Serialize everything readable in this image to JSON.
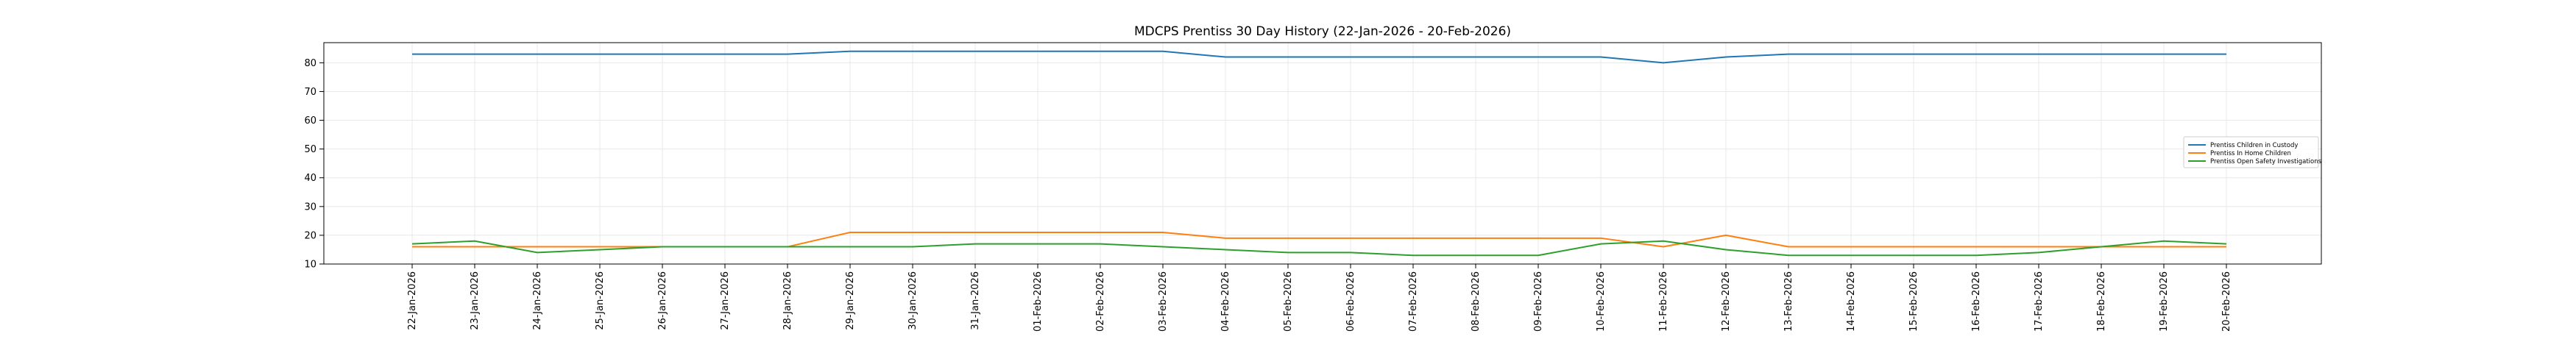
{
  "chart_data": {
    "type": "line",
    "title": "MDCPS Prentiss 30 Day History (22-Jan-2026 - 20-Feb-2026)",
    "xlabel": "",
    "ylabel": "",
    "ylim": [
      10,
      87
    ],
    "yticks": [
      10,
      20,
      30,
      40,
      50,
      60,
      70,
      80
    ],
    "grid": true,
    "legend_position": "right",
    "categories": [
      "22-Jan-2026",
      "23-Jan-2026",
      "24-Jan-2026",
      "25-Jan-2026",
      "26-Jan-2026",
      "27-Jan-2026",
      "28-Jan-2026",
      "29-Jan-2026",
      "30-Jan-2026",
      "31-Jan-2026",
      "01-Feb-2026",
      "02-Feb-2026",
      "03-Feb-2026",
      "04-Feb-2026",
      "05-Feb-2026",
      "06-Feb-2026",
      "07-Feb-2026",
      "08-Feb-2026",
      "09-Feb-2026",
      "10-Feb-2026",
      "11-Feb-2026",
      "12-Feb-2026",
      "13-Feb-2026",
      "14-Feb-2026",
      "15-Feb-2026",
      "16-Feb-2026",
      "17-Feb-2026",
      "18-Feb-2026",
      "19-Feb-2026",
      "20-Feb-2026"
    ],
    "series": [
      {
        "name": "Prentiss Children in Custody",
        "color": "#1f77b4",
        "values": [
          83,
          83,
          83,
          83,
          83,
          83,
          83,
          84,
          84,
          84,
          84,
          84,
          84,
          82,
          82,
          82,
          82,
          82,
          82,
          82,
          80,
          82,
          83,
          83,
          83,
          83,
          83,
          83,
          83,
          83
        ]
      },
      {
        "name": "Prentiss In Home Children",
        "color": "#ff7f0e",
        "values": [
          16,
          16,
          16,
          16,
          16,
          16,
          16,
          21,
          21,
          21,
          21,
          21,
          21,
          19,
          19,
          19,
          19,
          19,
          19,
          19,
          16,
          20,
          16,
          16,
          16,
          16,
          16,
          16,
          16,
          16
        ]
      },
      {
        "name": "Prentiss Open Safety Investigations",
        "color": "#2ca02c",
        "values": [
          17,
          18,
          14,
          15,
          16,
          16,
          16,
          16,
          16,
          17,
          17,
          17,
          16,
          15,
          14,
          14,
          13,
          13,
          13,
          17,
          18,
          15,
          13,
          13,
          13,
          13,
          14,
          16,
          18,
          17
        ]
      }
    ]
  }
}
